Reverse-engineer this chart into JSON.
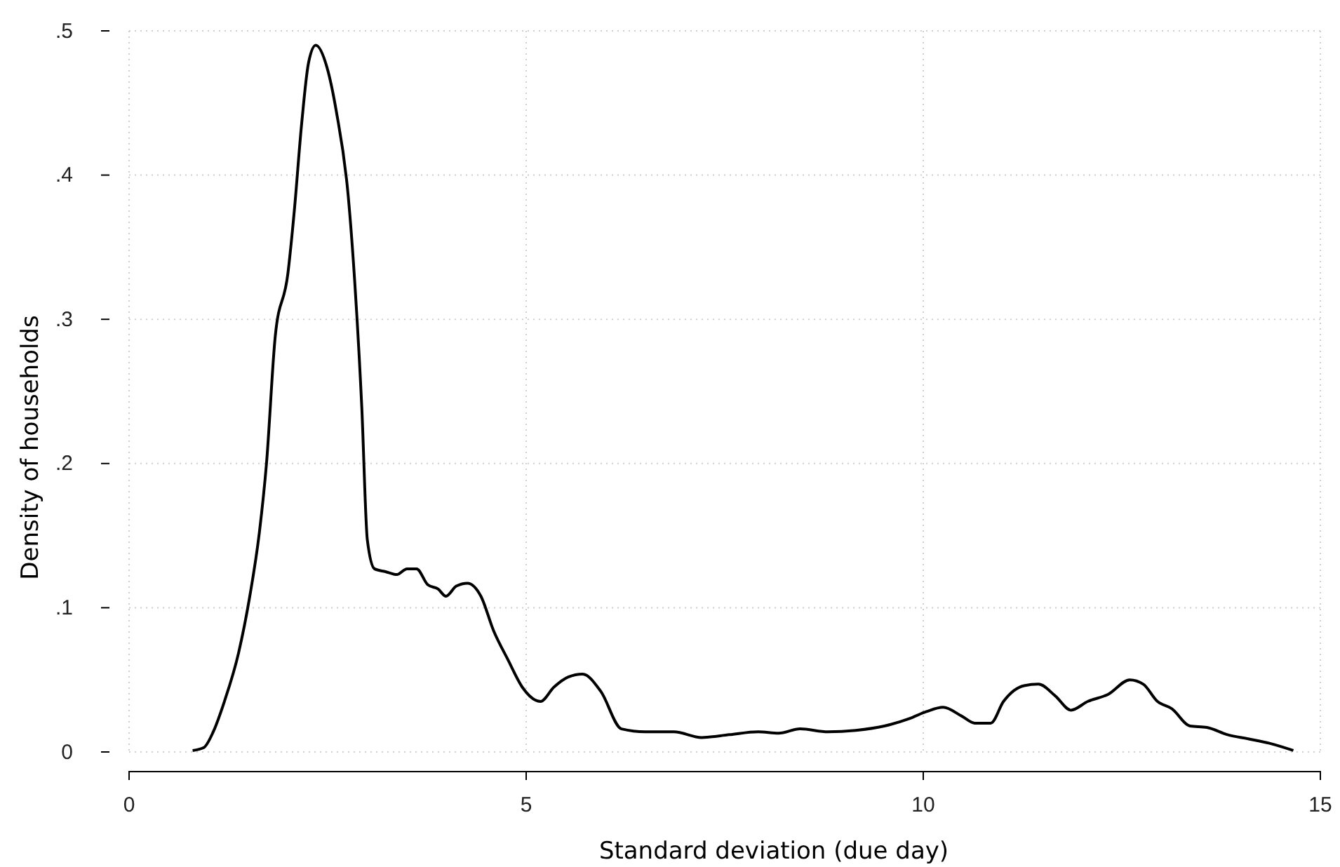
{
  "chart_data": {
    "type": "line",
    "xlabel": "Standard deviation (due day)",
    "ylabel": "Density of households",
    "xlim": [
      0,
      15
    ],
    "xticks": [
      0,
      5,
      10,
      15
    ],
    "ylim": [
      0,
      0.5
    ],
    "yticks": [
      {
        "value": 0,
        "label": "0"
      },
      {
        "value": 0.1,
        "label": ".1"
      },
      {
        "value": 0.2,
        "label": ".2"
      },
      {
        "value": 0.3,
        "label": ".3"
      },
      {
        "value": 0.4,
        "label": ".4"
      },
      {
        "value": 0.5,
        "label": ".5"
      }
    ],
    "grid": true,
    "marker": "none",
    "line_style": "solid",
    "series": [
      {
        "color": "#000000",
        "x": [
          0.8,
          0.94,
          1.06,
          1.2,
          1.38,
          1.52,
          1.64,
          1.73,
          1.84,
          2.0,
          2.08,
          2.17,
          2.26,
          2.35,
          2.49,
          2.61,
          2.76,
          2.84,
          2.93,
          3.0,
          3.09,
          3.23,
          3.37,
          3.5,
          3.62,
          3.76,
          3.89,
          3.99,
          4.12,
          4.26,
          4.43,
          4.59,
          4.77,
          4.95,
          5.18,
          5.35,
          5.53,
          5.71,
          5.94,
          6.2,
          6.5,
          6.86,
          7.21,
          7.56,
          7.92,
          8.18,
          8.45,
          8.8,
          9.15,
          9.51,
          9.82,
          10.04,
          10.25,
          10.48,
          10.65,
          10.85,
          11.01,
          11.27,
          11.45,
          11.66,
          11.86,
          12.07,
          12.33,
          12.6,
          12.77,
          12.95,
          13.13,
          13.36,
          13.57,
          13.83,
          14.1,
          14.36,
          14.66
        ],
        "values": [
          0.001,
          0.003,
          0.014,
          0.035,
          0.069,
          0.108,
          0.152,
          0.2,
          0.288,
          0.332,
          0.375,
          0.434,
          0.478,
          0.49,
          0.475,
          0.444,
          0.385,
          0.327,
          0.239,
          0.147,
          0.127,
          0.125,
          0.123,
          0.127,
          0.127,
          0.116,
          0.113,
          0.108,
          0.115,
          0.117,
          0.108,
          0.084,
          0.064,
          0.045,
          0.035,
          0.045,
          0.052,
          0.054,
          0.042,
          0.016,
          0.014,
          0.014,
          0.01,
          0.012,
          0.014,
          0.013,
          0.016,
          0.014,
          0.015,
          0.018,
          0.023,
          0.028,
          0.031,
          0.025,
          0.02,
          0.02,
          0.035,
          0.046,
          0.047,
          0.039,
          0.029,
          0.035,
          0.04,
          0.05,
          0.047,
          0.035,
          0.03,
          0.018,
          0.017,
          0.012,
          0.009,
          0.006,
          0.001
        ]
      }
    ]
  }
}
